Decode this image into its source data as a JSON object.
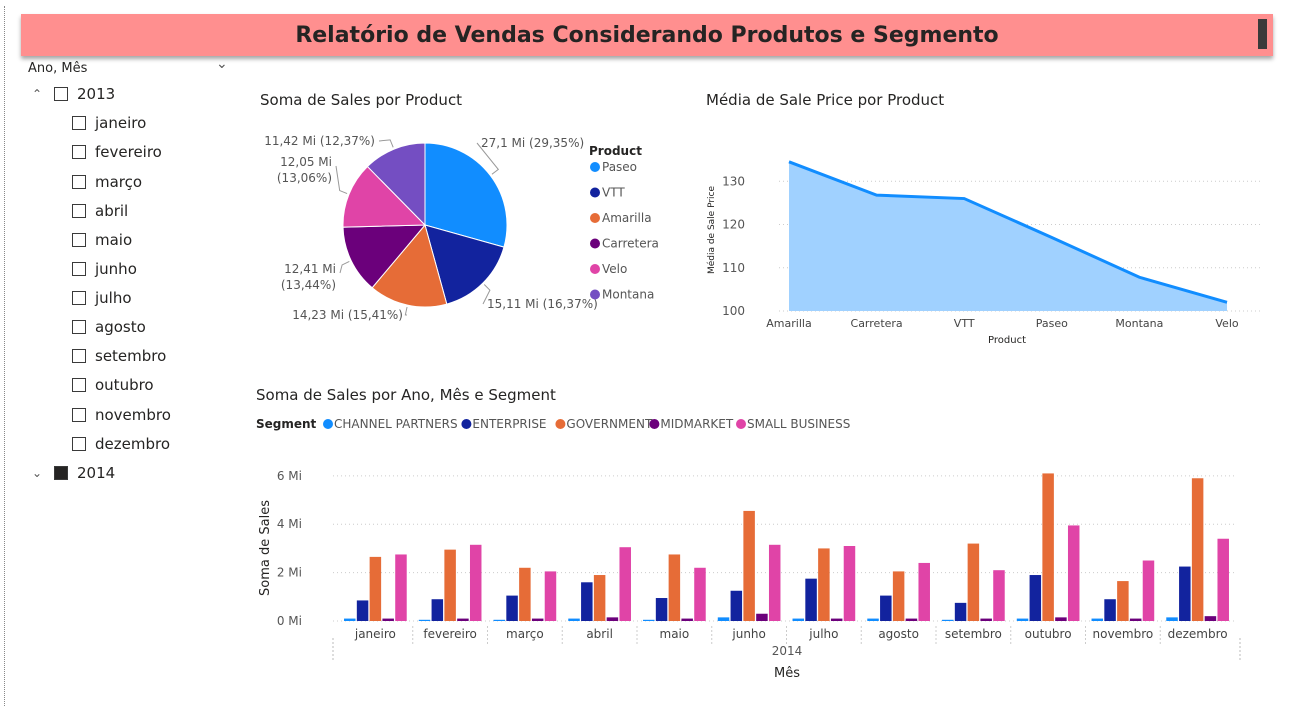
{
  "report": {
    "title": "Relatório de Vendas Considerando Produtos e Segmento"
  },
  "slicer": {
    "header": "Ano, Mês",
    "years": [
      {
        "label": "2013",
        "expanded": true,
        "checked": false,
        "months": [
          "janeiro",
          "fevereiro",
          "março",
          "abril",
          "maio",
          "junho",
          "julho",
          "agosto",
          "setembro",
          "outubro",
          "novembro",
          "dezembro"
        ]
      },
      {
        "label": "2014",
        "expanded": false,
        "checked": true
      }
    ]
  },
  "colors": {
    "banner": "#ff8f8f",
    "Paseo": "#118dff",
    "VTT": "#12239e",
    "Amarilla": "#e66c37",
    "Carretera": "#6b007b",
    "Velo": "#e044a7",
    "Montana": "#744ec2",
    "area_fill": "#a0d1ff",
    "area_line": "#118dff"
  },
  "chart_data": [
    {
      "type": "pie",
      "title": "Soma de Sales por Product",
      "legend_title": "Product",
      "legend_position": "right",
      "slices": [
        {
          "name": "Paseo",
          "value": 27.1,
          "label": "27,1 Mi (29,35%)"
        },
        {
          "name": "VTT",
          "value": 15.11,
          "label": "15,11 Mi (16,37%)"
        },
        {
          "name": "Amarilla",
          "value": 14.23,
          "label": "14,23 Mi (15,41%)"
        },
        {
          "name": "Carretera",
          "value": 12.41,
          "label_lines": [
            "12,41 Mi",
            "(13,44%)"
          ]
        },
        {
          "name": "Velo",
          "value": 12.05,
          "label_lines": [
            "12,05 Mi",
            "(13,06%)"
          ]
        },
        {
          "name": "Montana",
          "value": 11.42,
          "label": "11,42 Mi (12,37%)"
        }
      ]
    },
    {
      "type": "area",
      "title": "Média de Sale Price por Product",
      "xlabel": "Product",
      "ylabel": "Média de Sale Price",
      "categories": [
        "Amarilla",
        "Carretera",
        "VTT",
        "Paseo",
        "Montana",
        "Velo"
      ],
      "values": [
        134.5,
        126.8,
        126.0,
        117.0,
        107.8,
        102.0
      ],
      "ylim": [
        100,
        140
      ],
      "yticks": [
        100,
        110,
        120,
        130
      ],
      "grid": true
    },
    {
      "type": "bar",
      "title": "Soma de Sales por Ano, Mês e Segment",
      "legend_title": "Segment",
      "legend_position": "top-left",
      "xlabel": "Mês",
      "ylabel": "Soma de Sales",
      "year_label": "2014",
      "categories": [
        "janeiro",
        "fevereiro",
        "março",
        "abril",
        "maio",
        "junho",
        "julho",
        "agosto",
        "setembro",
        "outubro",
        "novembro",
        "dezembro"
      ],
      "ylim": [
        0,
        6.2
      ],
      "yticks": [
        0,
        2,
        4,
        6
      ],
      "ytick_labels": [
        "0 Mi",
        "2 Mi",
        "4 Mi",
        "6 Mi"
      ],
      "grid": true,
      "series": [
        {
          "name": "CHANNEL PARTNERS",
          "color": "#118dff",
          "values": [
            0.1,
            0.05,
            0.05,
            0.1,
            0.05,
            0.15,
            0.1,
            0.1,
            0.05,
            0.1,
            0.1,
            0.15
          ]
        },
        {
          "name": "ENTERPRISE",
          "color": "#12239e",
          "values": [
            0.85,
            0.9,
            1.05,
            1.6,
            0.95,
            1.25,
            1.75,
            1.05,
            0.75,
            1.9,
            0.9,
            2.25
          ]
        },
        {
          "name": "GOVERNMENT",
          "color": "#e66c37",
          "values": [
            2.65,
            2.95,
            2.2,
            1.9,
            2.75,
            4.55,
            3.0,
            2.05,
            3.2,
            6.1,
            1.65,
            5.9
          ]
        },
        {
          "name": "MIDMARKET",
          "color": "#6b007b",
          "values": [
            0.1,
            0.1,
            0.1,
            0.15,
            0.1,
            0.3,
            0.1,
            0.1,
            0.1,
            0.15,
            0.1,
            0.2
          ]
        },
        {
          "name": "SMALL BUSINESS",
          "color": "#e044a7",
          "values": [
            2.75,
            3.15,
            2.05,
            3.05,
            2.2,
            3.15,
            3.1,
            2.4,
            2.1,
            3.95,
            2.5,
            3.4
          ]
        }
      ]
    }
  ]
}
